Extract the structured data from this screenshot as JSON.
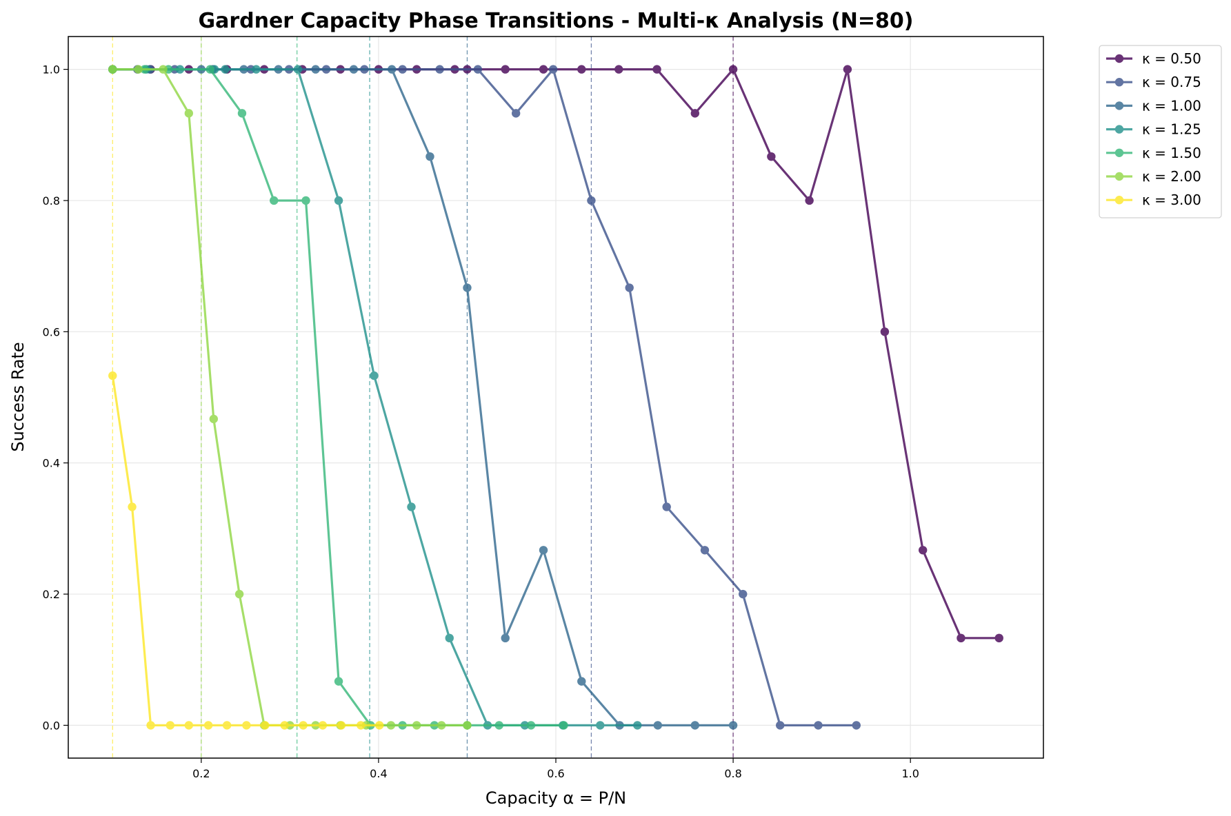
{
  "chart_data": {
    "type": "line",
    "title": "Gardner Capacity Phase Transitions - Multi-κ Analysis (N=80)",
    "xlabel": "Capacity α = P/N",
    "ylabel": "Success Rate",
    "xlim": [
      0.05,
      1.15
    ],
    "ylim": [
      -0.05,
      1.05
    ],
    "xticks": [
      0.2,
      0.4,
      0.6,
      0.8,
      1.0
    ],
    "xtick_labels": [
      "0.2",
      "0.4",
      "0.6",
      "0.8",
      "1.0"
    ],
    "yticks": [
      0.0,
      0.2,
      0.4,
      0.6,
      0.8,
      1.0
    ],
    "ytick_labels": [
      "0.0",
      "0.2",
      "0.4",
      "0.6",
      "0.8",
      "1.0"
    ],
    "grid": true,
    "legend_position": "outside-top-right",
    "series": [
      {
        "name": "κ = 0.50",
        "color": "#440154",
        "critical_alpha": 0.8,
        "x": [
          0.1,
          0.143,
          0.186,
          0.229,
          0.271,
          0.314,
          0.357,
          0.4,
          0.443,
          0.486,
          0.5,
          0.543,
          0.586,
          0.629,
          0.671,
          0.714,
          0.757,
          0.8,
          0.843,
          0.886,
          0.929,
          0.971,
          1.014,
          1.057,
          1.1
        ],
        "values": [
          1.0,
          1.0,
          1.0,
          1.0,
          1.0,
          1.0,
          1.0,
          1.0,
          1.0,
          1.0,
          1.0,
          1.0,
          1.0,
          1.0,
          1.0,
          1.0,
          0.933,
          1.0,
          0.867,
          0.8,
          1.0,
          0.6,
          0.267,
          0.133,
          0.133
        ]
      },
      {
        "name": "κ = 0.75",
        "color": "#3b528b",
        "critical_alpha": 0.64,
        "x": [
          0.1,
          0.128,
          0.17,
          0.213,
          0.256,
          0.299,
          0.341,
          0.384,
          0.427,
          0.469,
          0.512,
          0.555,
          0.597,
          0.64,
          0.683,
          0.725,
          0.768,
          0.811,
          0.853,
          0.896,
          0.939
        ],
        "values": [
          1.0,
          1.0,
          1.0,
          1.0,
          1.0,
          1.0,
          1.0,
          1.0,
          1.0,
          1.0,
          1.0,
          0.933,
          1.0,
          0.8,
          0.667,
          0.333,
          0.267,
          0.2,
          0.0,
          0.0,
          0.0
        ]
      },
      {
        "name": "κ = 1.00",
        "color": "#31688e",
        "critical_alpha": 0.5,
        "x": [
          0.1,
          0.142,
          0.2,
          0.248,
          0.287,
          0.329,
          0.372,
          0.415,
          0.458,
          0.5,
          0.543,
          0.586,
          0.629,
          0.672,
          0.715,
          0.757,
          0.8
        ],
        "values": [
          1.0,
          1.0,
          1.0,
          1.0,
          1.0,
          1.0,
          1.0,
          1.0,
          0.867,
          0.667,
          0.133,
          0.267,
          0.067,
          0.0,
          0.0,
          0.0,
          0.0
        ]
      },
      {
        "name": "κ = 1.25",
        "color": "#21918c",
        "critical_alpha": 0.39,
        "x": [
          0.1,
          0.138,
          0.176,
          0.215,
          0.227,
          0.262,
          0.309,
          0.355,
          0.395,
          0.437,
          0.48,
          0.523,
          0.565,
          0.608,
          0.65,
          0.692
        ],
        "values": [
          1.0,
          1.0,
          1.0,
          1.0,
          1.0,
          1.0,
          1.0,
          0.8,
          0.533,
          0.333,
          0.133,
          0.0,
          0.0,
          0.0,
          0.0,
          0.0
        ]
      },
      {
        "name": "κ = 1.50",
        "color": "#35b779",
        "critical_alpha": 0.308,
        "x": [
          0.1,
          0.136,
          0.163,
          0.21,
          0.246,
          0.282,
          0.318,
          0.355,
          0.391,
          0.427,
          0.463,
          0.5,
          0.536,
          0.572,
          0.609
        ],
        "values": [
          1.0,
          1.0,
          1.0,
          1.0,
          0.933,
          0.8,
          0.8,
          0.067,
          0.0,
          0.0,
          0.0,
          0.0,
          0.0,
          0.0,
          0.0
        ]
      },
      {
        "name": "κ = 2.00",
        "color": "#90d743",
        "critical_alpha": 0.2,
        "x": [
          0.1,
          0.129,
          0.157,
          0.186,
          0.214,
          0.243,
          0.271,
          0.3,
          0.329,
          0.357,
          0.386,
          0.414,
          0.443,
          0.471,
          0.5
        ],
        "values": [
          1.0,
          1.0,
          1.0,
          0.933,
          0.467,
          0.2,
          0.0,
          0.0,
          0.0,
          0.0,
          0.0,
          0.0,
          0.0,
          0.0,
          0.0
        ]
      },
      {
        "name": "κ = 3.00",
        "color": "#fde725",
        "critical_alpha": 0.1,
        "x": [
          0.1,
          0.122,
          0.143,
          0.165,
          0.186,
          0.208,
          0.229,
          0.251,
          0.272,
          0.294,
          0.315,
          0.337,
          0.358,
          0.38,
          0.401
        ],
        "values": [
          0.533,
          0.333,
          0.0,
          0.0,
          0.0,
          0.0,
          0.0,
          0.0,
          0.0,
          0.0,
          0.0,
          0.0,
          0.0,
          0.0,
          0.0
        ]
      }
    ]
  }
}
